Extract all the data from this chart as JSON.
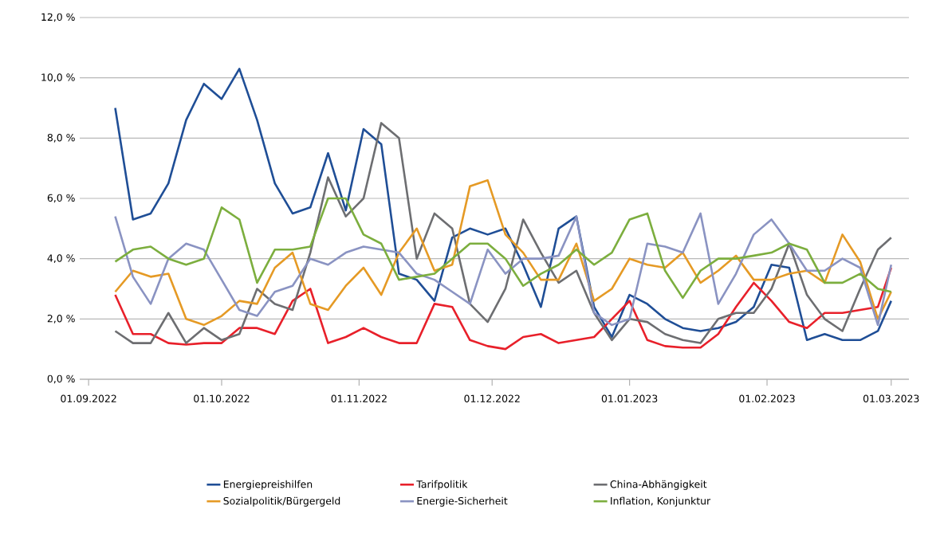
{
  "chart_data": {
    "type": "line",
    "x": [
      "2022-09-07",
      "2022-09-11",
      "2022-09-15",
      "2022-09-19",
      "2022-09-23",
      "2022-09-27",
      "2022-10-01",
      "2022-10-05",
      "2022-10-09",
      "2022-10-13",
      "2022-10-17",
      "2022-10-21",
      "2022-10-25",
      "2022-10-29",
      "2022-11-02",
      "2022-11-06",
      "2022-11-10",
      "2022-11-14",
      "2022-11-18",
      "2022-11-22",
      "2022-11-26",
      "2022-11-30",
      "2022-12-04",
      "2022-12-08",
      "2022-12-12",
      "2022-12-16",
      "2022-12-20",
      "2022-12-24",
      "2022-12-28",
      "2023-01-01",
      "2023-01-05",
      "2023-01-09",
      "2023-01-13",
      "2023-01-17",
      "2023-01-21",
      "2023-01-25",
      "2023-01-29",
      "2023-02-02",
      "2023-02-06",
      "2023-02-10",
      "2023-02-14",
      "2023-02-18",
      "2023-02-22",
      "2023-02-26",
      "2023-03-01"
    ],
    "series": [
      {
        "name": "Energiepreishilfen",
        "color": "#1f4e96",
        "values": [
          9.0,
          5.3,
          5.5,
          6.5,
          8.6,
          9.8,
          9.3,
          10.3,
          8.6,
          6.5,
          5.5,
          5.7,
          7.5,
          5.6,
          8.3,
          7.8,
          3.5,
          3.3,
          2.6,
          4.7,
          5.0,
          4.8,
          5.0,
          3.8,
          2.4,
          5.0,
          5.4,
          2.4,
          1.4,
          2.8,
          2.5,
          2.0,
          1.7,
          1.6,
          1.7,
          1.9,
          2.4,
          3.8,
          3.7,
          1.3,
          1.5,
          1.3,
          1.3,
          1.6,
          2.6
        ]
      },
      {
        "name": "Tarifpolitik",
        "color": "#e8202a",
        "values": [
          2.8,
          1.5,
          1.5,
          1.2,
          1.15,
          1.2,
          1.2,
          1.7,
          1.7,
          1.5,
          2.6,
          3.0,
          1.2,
          1.4,
          1.7,
          1.4,
          1.2,
          1.2,
          2.5,
          2.4,
          1.3,
          1.1,
          1.0,
          1.4,
          1.5,
          1.2,
          1.3,
          1.4,
          2.0,
          2.6,
          1.3,
          1.1,
          1.05,
          1.05,
          1.5,
          2.4,
          3.2,
          2.6,
          1.9,
          1.7,
          2.2,
          2.2,
          2.3,
          2.4,
          3.7
        ]
      },
      {
        "name": "China-Abhängigkeit",
        "color": "#6d6e71",
        "values": [
          1.6,
          1.2,
          1.2,
          2.2,
          1.2,
          1.7,
          1.3,
          1.5,
          3.0,
          2.5,
          2.3,
          4.2,
          6.7,
          5.4,
          6.0,
          8.5,
          8.0,
          4.0,
          5.5,
          5.0,
          2.5,
          1.9,
          3.0,
          5.3,
          4.2,
          3.2,
          3.6,
          2.2,
          1.3,
          2.0,
          1.9,
          1.5,
          1.3,
          1.2,
          2.0,
          2.2,
          2.2,
          3.0,
          4.5,
          2.8,
          2.0,
          1.6,
          3.0,
          4.3,
          4.7
        ]
      },
      {
        "name": "Sozialpolitik/Bürgergeld",
        "color": "#e59a25",
        "values": [
          2.9,
          3.6,
          3.4,
          3.5,
          2.0,
          1.8,
          2.1,
          2.6,
          2.5,
          3.7,
          4.2,
          2.5,
          2.3,
          3.1,
          3.7,
          2.8,
          4.2,
          5.0,
          3.6,
          3.8,
          6.4,
          6.6,
          4.8,
          4.2,
          3.3,
          3.3,
          4.5,
          2.6,
          3.0,
          4.0,
          3.8,
          3.7,
          4.2,
          3.2,
          3.6,
          4.1,
          3.3,
          3.3,
          3.5,
          3.6,
          3.2,
          4.8,
          3.9,
          2.0,
          2.9
        ]
      },
      {
        "name": "Energie-Sicherheit",
        "color": "#8a93c2",
        "values": [
          5.4,
          3.4,
          2.5,
          4.0,
          4.5,
          4.3,
          3.3,
          2.3,
          2.1,
          2.9,
          3.1,
          4.0,
          3.8,
          4.2,
          4.4,
          4.3,
          4.2,
          3.5,
          3.3,
          2.9,
          2.5,
          4.3,
          3.5,
          4.0,
          4.0,
          4.1,
          5.4,
          2.2,
          1.8,
          2.0,
          4.5,
          4.4,
          4.2,
          5.5,
          2.5,
          3.5,
          4.8,
          5.3,
          4.5,
          3.6,
          3.6,
          4.0,
          3.7,
          1.8,
          3.8
        ]
      },
      {
        "name": "Inflation, Konjunktur",
        "color": "#7cae3e",
        "values": [
          3.9,
          4.3,
          4.4,
          4.0,
          3.8,
          4.0,
          5.7,
          5.3,
          3.2,
          4.3,
          4.3,
          4.4,
          6.0,
          6.0,
          4.8,
          4.5,
          3.3,
          3.4,
          3.5,
          4.0,
          4.5,
          4.5,
          4.0,
          3.1,
          3.5,
          3.8,
          4.3,
          3.8,
          4.2,
          5.3,
          5.5,
          3.6,
          2.7,
          3.6,
          4.0,
          4.0,
          4.1,
          4.2,
          4.5,
          4.3,
          3.2,
          3.2,
          3.5,
          3.0,
          2.9
        ]
      }
    ],
    "xlim": [
      "2022-08-30",
      "2023-03-05"
    ],
    "xticks": [
      {
        "value": "2022-09-01",
        "label": "01.09.2022"
      },
      {
        "value": "2022-10-01",
        "label": "01.10.2022"
      },
      {
        "value": "2022-11-01",
        "label": "01.11.2022"
      },
      {
        "value": "2022-12-01",
        "label": "01.12.2022"
      },
      {
        "value": "2023-01-01",
        "label": "01.01.2023"
      },
      {
        "value": "2023-02-01",
        "label": "01.02.2023"
      },
      {
        "value": "2023-03-01",
        "label": "01.03.2023"
      }
    ],
    "ylim": [
      0,
      12
    ],
    "yticks": [
      {
        "value": 0,
        "label": "0,0 %"
      },
      {
        "value": 2,
        "label": "2,0 %"
      },
      {
        "value": 4,
        "label": "4,0 %"
      },
      {
        "value": 6,
        "label": "6,0 %"
      },
      {
        "value": 8,
        "label": "8,0 %"
      },
      {
        "value": 10,
        "label": "10,0 %"
      },
      {
        "value": 12,
        "label": "12,0 %"
      }
    ],
    "grid": "y",
    "legend": "bottom",
    "marker": "none",
    "line_style": "solid"
  }
}
